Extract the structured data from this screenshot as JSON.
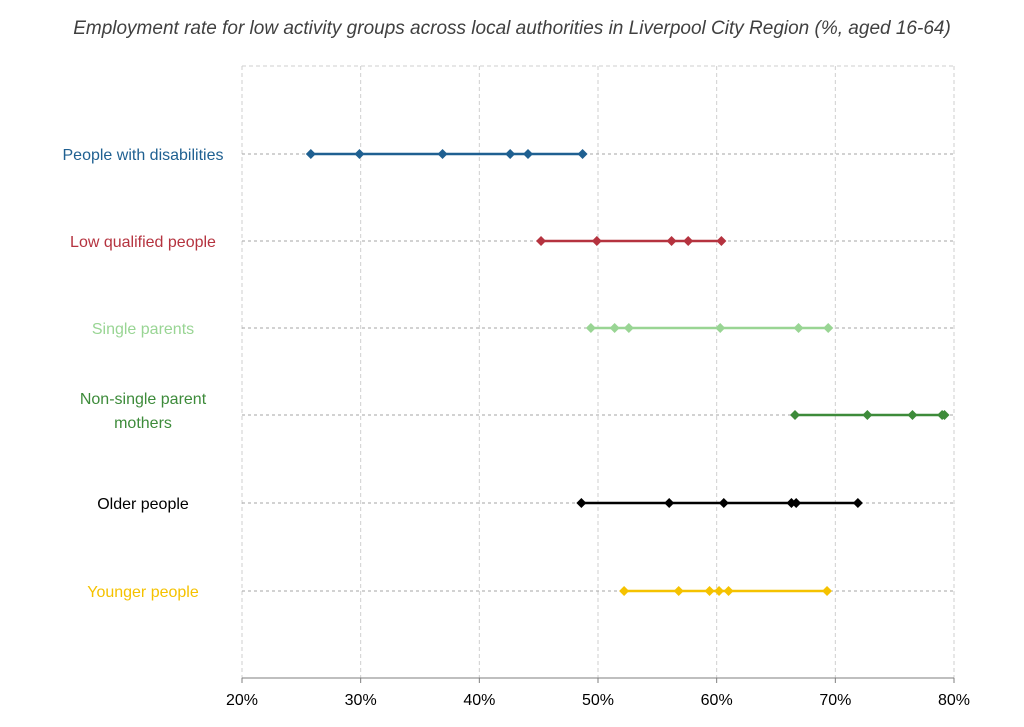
{
  "chart_data": {
    "type": "scatter",
    "title": "Employment rate for low activity groups across local authorities in Liverpool City Region (%, aged 16-64)",
    "xlabel": "",
    "ylabel": "",
    "xlim": [
      20,
      80
    ],
    "x_ticks": [
      20,
      30,
      40,
      50,
      60,
      70,
      80
    ],
    "x_tick_suffix": "%",
    "grid": true,
    "legend": "none",
    "categories": [
      {
        "label": [
          "People with disabilities"
        ],
        "color": "#1F6091",
        "values": [
          25.8,
          29.9,
          36.9,
          42.6,
          44.1,
          48.7
        ]
      },
      {
        "label": [
          "Low qualified people"
        ],
        "color": "#B5333F",
        "values": [
          45.2,
          49.9,
          56.2,
          57.6,
          60.4
        ]
      },
      {
        "label": [
          "Single parents"
        ],
        "color": "#99D594",
        "values": [
          49.4,
          51.4,
          52.6,
          60.3,
          66.9,
          69.4
        ]
      },
      {
        "label": [
          "Non-single parent",
          "mothers"
        ],
        "color": "#3D8B3A",
        "values": [
          66.6,
          72.7,
          76.5,
          79.0,
          79.2
        ]
      },
      {
        "label": [
          "Older people"
        ],
        "color": "#000000",
        "values": [
          48.6,
          56.0,
          60.6,
          66.3,
          66.7,
          71.9
        ]
      },
      {
        "label": [
          "Younger people"
        ],
        "color": "#F5C200",
        "values": [
          52.2,
          56.8,
          59.4,
          60.2,
          61.0,
          69.3
        ]
      }
    ]
  }
}
